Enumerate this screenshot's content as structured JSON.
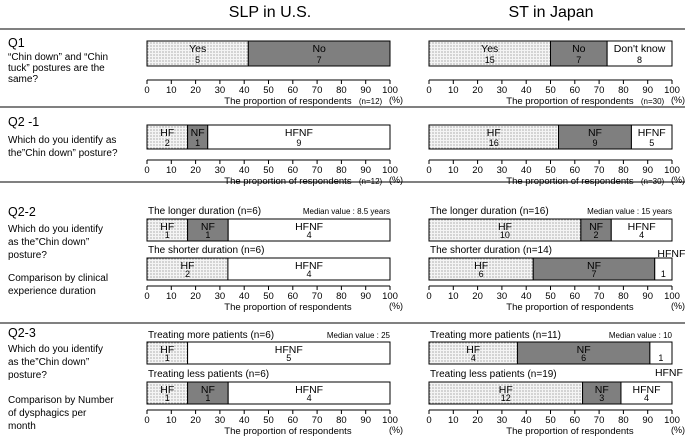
{
  "header": {
    "left": "SLP in U.S.",
    "right": "ST in Japan"
  },
  "axis": {
    "ticks": [
      "0",
      "10",
      "20",
      "30",
      "40",
      "50",
      "60",
      "70",
      "80",
      "90",
      "100"
    ],
    "unit": "(%)",
    "xlabel": "The proportion of respondents"
  },
  "colors": {
    "dotted": "#f2f2f2",
    "grey": "#7f7f7f",
    "white": "#ffffff",
    "line": "#000000"
  },
  "questions": [
    {
      "id": "Q1",
      "title": "Q1",
      "desc_lines": [
        "“Chin down” and “Chin",
        "tuck” postures are the",
        "same?"
      ]
    },
    {
      "id": "Q2-1",
      "title": "Q2 -1",
      "desc_lines": [
        "Which do you identify as",
        "the”Chin down” posture?"
      ]
    },
    {
      "id": "Q2-2",
      "title": "Q2-2",
      "desc_lines": [
        "Which do you identify",
        "as the”Chin down”",
        "posture?",
        "",
        "Comparison by clinical",
        "experience duration"
      ]
    },
    {
      "id": "Q2-3",
      "title": "Q2-3",
      "desc_lines": [
        "Which do you identify",
        "as the”Chin down”",
        "posture?",
        "",
        "Comparison by Number",
        "of dysphagics per",
        "month"
      ]
    }
  ],
  "chart_data": [
    {
      "type": "bar",
      "panel": "Q1 SLP in U.S.",
      "n_label": "(n=12)",
      "xlim": [
        0,
        100
      ],
      "segments": [
        {
          "label": "Yes",
          "count": "5",
          "value": 41.7,
          "fill": "dotted"
        },
        {
          "label": "No",
          "count": "7",
          "value": 58.3,
          "fill": "grey"
        }
      ]
    },
    {
      "type": "bar",
      "panel": "Q1 ST in Japan",
      "n_label": "(n=30)",
      "xlim": [
        0,
        100
      ],
      "segments": [
        {
          "label": "Yes",
          "count": "15",
          "value": 50.0,
          "fill": "dotted"
        },
        {
          "label": "No",
          "count": "7",
          "value": 23.3,
          "fill": "grey"
        },
        {
          "label": "Don't know",
          "count": "8",
          "value": 26.7,
          "fill": "white"
        }
      ]
    },
    {
      "type": "bar",
      "panel": "Q2-1 SLP in U.S.",
      "n_label": "(n=12)",
      "xlim": [
        0,
        100
      ],
      "segments": [
        {
          "label": "HF",
          "count": "2",
          "value": 16.7,
          "fill": "dotted"
        },
        {
          "label": "NF",
          "count": "1",
          "value": 8.3,
          "fill": "grey"
        },
        {
          "label": "HFNF",
          "count": "9",
          "value": 75.0,
          "fill": "white"
        }
      ]
    },
    {
      "type": "bar",
      "panel": "Q2-1 ST in Japan",
      "n_label": "(n=30)",
      "xlim": [
        0,
        100
      ],
      "segments": [
        {
          "label": "HF",
          "count": "16",
          "value": 53.3,
          "fill": "dotted"
        },
        {
          "label": "NF",
          "count": "9",
          "value": 30.0,
          "fill": "grey"
        },
        {
          "label": "HFNF",
          "count": "5",
          "value": 16.7,
          "fill": "white"
        }
      ]
    },
    {
      "type": "bar",
      "panel": "Q2-2 SLP in U.S.",
      "xlim": [
        0,
        100
      ],
      "median": "Median value : 8.5 years",
      "bars": [
        {
          "caption": "The longer duration (n=6)",
          "segments": [
            {
              "label": "HF",
              "count": "1",
              "value": 16.7,
              "fill": "dotted"
            },
            {
              "label": "NF",
              "count": "1",
              "value": 16.7,
              "fill": "grey"
            },
            {
              "label": "HFNF",
              "count": "4",
              "value": 66.6,
              "fill": "white"
            }
          ]
        },
        {
          "caption": "The shorter duration (n=6)",
          "segments": [
            {
              "label": "HF",
              "count": "2",
              "value": 33.3,
              "fill": "dotted"
            },
            {
              "label": "HFNF",
              "count": "4",
              "value": 66.7,
              "fill": "white"
            }
          ]
        }
      ]
    },
    {
      "type": "bar",
      "panel": "Q2-2 ST in Japan",
      "xlim": [
        0,
        100
      ],
      "median": "Median value : 15 years",
      "bars": [
        {
          "caption": "The longer duration (n=16)",
          "segments": [
            {
              "label": "HF",
              "count": "10",
              "value": 62.5,
              "fill": "dotted"
            },
            {
              "label": "NF",
              "count": "2",
              "value": 12.5,
              "fill": "grey"
            },
            {
              "label": "HFNF",
              "count": "4",
              "value": 25.0,
              "fill": "white"
            }
          ]
        },
        {
          "caption": "The shorter duration (n=14)",
          "segments": [
            {
              "label": "HF",
              "count": "6",
              "value": 42.9,
              "fill": "dotted"
            },
            {
              "label": "NF",
              "count": "7",
              "value": 50.0,
              "fill": "grey"
            },
            {
              "label": "HFNF",
              "count": "1",
              "value": 7.1,
              "fill": "white",
              "outside": true
            }
          ]
        }
      ]
    },
    {
      "type": "bar",
      "panel": "Q2-3 SLP in U.S.",
      "xlim": [
        0,
        100
      ],
      "median": "Median value : 25",
      "bars": [
        {
          "caption": "Treating more patients (n=6)",
          "segments": [
            {
              "label": "HF",
              "count": "1",
              "value": 16.7,
              "fill": "dotted"
            },
            {
              "label": "HFNF",
              "count": "5",
              "value": 83.3,
              "fill": "white"
            }
          ]
        },
        {
          "caption": "Treating less patients (n=6)",
          "segments": [
            {
              "label": "HF",
              "count": "1",
              "value": 16.7,
              "fill": "dotted"
            },
            {
              "label": "NF",
              "count": "1",
              "value": 16.7,
              "fill": "grey"
            },
            {
              "label": "HFNF",
              "count": "4",
              "value": 66.6,
              "fill": "white"
            }
          ]
        }
      ]
    },
    {
      "type": "bar",
      "panel": "Q2-3 ST in Japan",
      "xlim": [
        0,
        100
      ],
      "median": "Median value : 10",
      "bars": [
        {
          "caption": "Treating more patients (n=11)",
          "segments": [
            {
              "label": "HF",
              "count": "4",
              "value": 36.4,
              "fill": "dotted"
            },
            {
              "label": "NF",
              "count": "6",
              "value": 54.5,
              "fill": "grey"
            },
            {
              "label": "HFNF",
              "count": "1",
              "value": 9.1,
              "fill": "white",
              "label_below": true
            }
          ]
        },
        {
          "caption": "Treating less patients (n=19)",
          "segments": [
            {
              "label": "HF",
              "count": "12",
              "value": 63.2,
              "fill": "dotted"
            },
            {
              "label": "NF",
              "count": "3",
              "value": 15.8,
              "fill": "grey"
            },
            {
              "label": "HFNF",
              "count": "4",
              "value": 21.0,
              "fill": "white",
              "label_above": true
            }
          ]
        }
      ]
    }
  ]
}
